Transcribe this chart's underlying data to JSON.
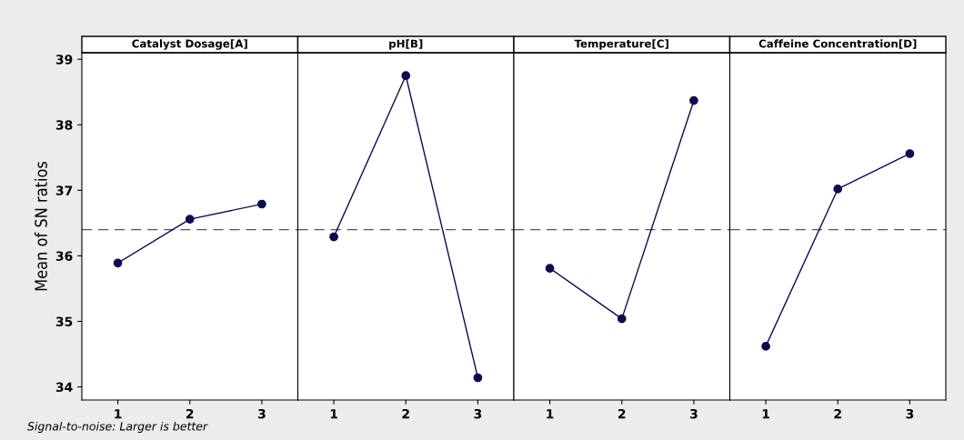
{
  "chart_data": [
    {
      "type": "line",
      "title": "Catalyst Dosage[A]",
      "ylabel": "Mean of SN ratios",
      "categories": [
        "1",
        "2",
        "3"
      ],
      "series": [
        {
          "color": "#0b0b4f",
          "values": [
            35.89,
            36.56,
            36.79
          ]
        }
      ],
      "ylim": [
        33.8,
        39.1
      ],
      "yticks": [
        34,
        35,
        36,
        37,
        38,
        39
      ],
      "marker": "circle",
      "line_style": "solid",
      "grid": false,
      "ref_lines": [
        {
          "axis": "y",
          "value": 36.4,
          "color": "#555555",
          "line_style": "dashed"
        }
      ],
      "annotations": [
        "Signal-to-noise: Larger is better"
      ]
    },
    {
      "type": "line",
      "title": "pH[B]",
      "categories": [
        "1",
        "2",
        "3"
      ],
      "series": [
        {
          "color": "#0b0b4f",
          "values": [
            36.29,
            38.75,
            34.14
          ]
        }
      ],
      "ylim": [
        33.8,
        39.1
      ],
      "tick_labels": "x",
      "marker": "circle",
      "line_style": "solid",
      "grid": false,
      "ref_lines": [
        {
          "axis": "y",
          "value": 36.4,
          "color": "#555555",
          "line_style": "dashed"
        }
      ]
    },
    {
      "type": "line",
      "title": "Temperature[C]",
      "categories": [
        "1",
        "2",
        "3"
      ],
      "series": [
        {
          "color": "#0b0b4f",
          "values": [
            35.81,
            35.04,
            38.37
          ]
        }
      ],
      "ylim": [
        33.8,
        39.1
      ],
      "tick_labels": "x",
      "marker": "circle",
      "line_style": "solid",
      "grid": false,
      "ref_lines": [
        {
          "axis": "y",
          "value": 36.4,
          "color": "#555555",
          "line_style": "dashed"
        }
      ]
    },
    {
      "type": "line",
      "title": "Caffeine Concentration[D]",
      "categories": [
        "1",
        "2",
        "3"
      ],
      "series": [
        {
          "color": "#0b0b4f",
          "values": [
            34.62,
            37.02,
            37.56
          ]
        }
      ],
      "ylim": [
        33.8,
        39.1
      ],
      "tick_labels": "x",
      "marker": "circle",
      "line_style": "solid",
      "grid": false,
      "ref_lines": [
        {
          "axis": "y",
          "value": 36.4,
          "color": "#555555",
          "line_style": "dashed"
        }
      ]
    }
  ]
}
